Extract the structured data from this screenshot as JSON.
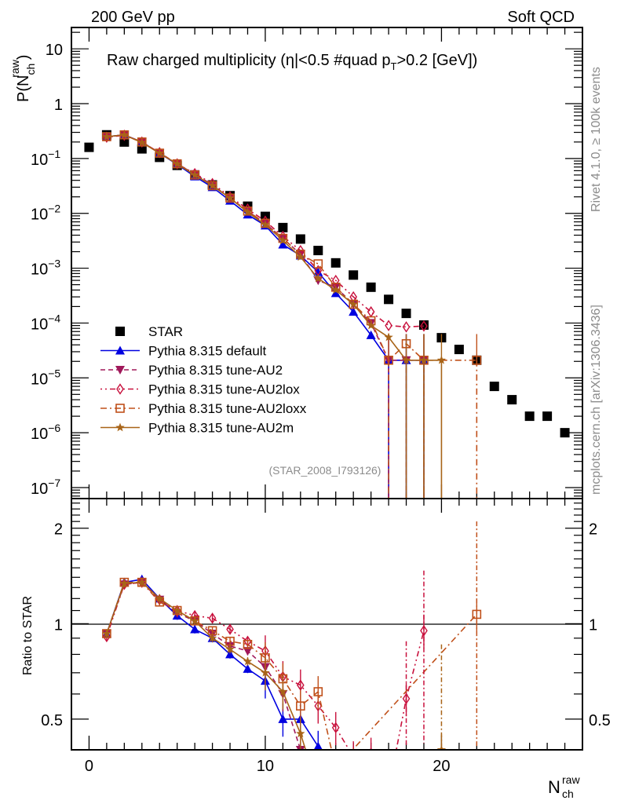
{
  "header": {
    "left": "200 GeV pp",
    "right": "Soft QCD"
  },
  "side_labels": {
    "rivet": "Rivet 4.1.0, ≥ 100k events",
    "mcplots": "mcplots.cern.ch [arXiv:1306.3436]"
  },
  "chart_data": [
    {
      "type": "line",
      "panel": "main",
      "title": "Raw charged multiplicity (|η|<0.5 #quad p_T>0.2 [GeV])",
      "title_parts": {
        "pre": "Raw charged multiplicity (",
        "eta": "η",
        "mid": "|<0.5 #quad p",
        "sub": "T",
        "post": ">0.2 [GeV])"
      },
      "ylabel": "P(N_ch^raw)",
      "ylabel_parts": {
        "p": "P(N",
        "sub": "ch",
        "sup": "raw",
        "close": ")"
      },
      "xlabel": "N_ch^raw",
      "xlabel_parts": {
        "n": "N",
        "sub": "ch",
        "sup": "raw"
      },
      "yscale": "log",
      "xlim": [
        -1,
        28
      ],
      "ylim": [
        6.3e-08,
        24.5
      ],
      "x_ticks": [
        0,
        10,
        20
      ],
      "y_tick_labels": [
        {
          "v": 10,
          "t": "10"
        },
        {
          "v": 1,
          "t": "1"
        },
        {
          "v": 0.1,
          "t": "10",
          "e": "−1"
        },
        {
          "v": 0.01,
          "t": "10",
          "e": "−2"
        },
        {
          "v": 0.001,
          "t": "10",
          "e": "−3"
        },
        {
          "v": 0.0001,
          "t": "10",
          "e": "−4"
        },
        {
          "v": 1e-05,
          "t": "10",
          "e": "−5"
        },
        {
          "v": 1e-06,
          "t": "10",
          "e": "−6"
        },
        {
          "v": 1e-07,
          "t": "10",
          "e": "−7"
        }
      ],
      "annotation": "(STAR_2008_I793126)",
      "legend_position": "bottom-left",
      "series": [
        {
          "name": "STAR",
          "color": "#000000",
          "marker": "square",
          "line": "none",
          "x": [
            0,
            1,
            2,
            3,
            4,
            5,
            6,
            7,
            8,
            9,
            10,
            11,
            12,
            13,
            14,
            15,
            16,
            17,
            18,
            19,
            20,
            21,
            22,
            23,
            24,
            25,
            26,
            27
          ],
          "y": [
            0.16,
            0.27,
            0.2,
            0.15,
            0.105,
            0.075,
            0.05,
            0.033,
            0.021,
            0.0135,
            0.0088,
            0.0055,
            0.0034,
            0.0021,
            0.00125,
            0.00075,
            0.00045,
            0.00027,
            0.00015,
            9.2e-05,
            5.4e-05,
            3.3e-05,
            2.1e-05,
            7e-06,
            4e-06,
            2e-06,
            2e-06,
            1e-06
          ]
        },
        {
          "name": "Pythia 8.315 default",
          "color": "#0000e0",
          "marker": "triangle-up",
          "line": "solid",
          "x": [
            1,
            2,
            3,
            4,
            5,
            6,
            7,
            8,
            9,
            10,
            11,
            12,
            13,
            14,
            15,
            16,
            17,
            18,
            19
          ],
          "y": [
            0.25,
            0.27,
            0.2,
            0.125,
            0.078,
            0.047,
            0.03,
            0.017,
            0.0095,
            0.006,
            0.0027,
            0.0017,
            0.00085,
            0.00035,
            0.00016,
            6e-05,
            2.1e-05,
            2.1e-05,
            2.1e-05
          ]
        },
        {
          "name": "Pythia 8.315 tune-AU2",
          "color": "#a0185a",
          "marker": "triangle-down",
          "line": "dashed",
          "x": [
            1,
            2,
            3,
            4,
            5,
            6,
            7,
            8,
            9,
            10,
            11,
            12,
            13,
            14,
            15,
            16,
            17,
            18,
            19
          ],
          "y": [
            0.25,
            0.27,
            0.2,
            0.125,
            0.08,
            0.052,
            0.033,
            0.019,
            0.011,
            0.0065,
            0.0035,
            0.0018,
            0.0006,
            0.00045,
            0.00022,
            0.0001,
            2.1e-05,
            2.1e-05,
            2.1e-05
          ]
        },
        {
          "name": "Pythia 8.315 tune-AU2lox",
          "color": "#c8103c",
          "marker": "diamond-open",
          "line": "dash-dot-dot",
          "x": [
            1,
            2,
            3,
            4,
            5,
            6,
            7,
            8,
            9,
            10,
            11,
            12,
            13,
            14,
            15,
            16,
            17,
            18,
            19
          ],
          "y": [
            0.245,
            0.265,
            0.2,
            0.128,
            0.08,
            0.053,
            0.035,
            0.02,
            0.012,
            0.0072,
            0.0038,
            0.0021,
            0.0009,
            0.0006,
            0.0003,
            0.00016,
            9e-05,
            8.5e-05,
            8.8e-05
          ]
        },
        {
          "name": "Pythia 8.315 tune-AU2loxx",
          "color": "#c0501a",
          "marker": "square-open",
          "line": "dash-dot",
          "x": [
            1,
            2,
            3,
            4,
            5,
            6,
            7,
            8,
            9,
            10,
            11,
            12,
            13,
            14,
            15,
            16,
            17,
            18,
            19,
            22
          ],
          "y": [
            0.25,
            0.27,
            0.2,
            0.125,
            0.08,
            0.05,
            0.032,
            0.019,
            0.011,
            0.0066,
            0.0035,
            0.0018,
            0.0012,
            0.00045,
            0.00022,
            0.00011,
            2.1e-05,
            4.2e-05,
            2.1e-05,
            2.1e-05
          ]
        },
        {
          "name": "Pythia 8.315 tune-AU2m",
          "color": "#a86418",
          "marker": "star",
          "line": "solid",
          "x": [
            1,
            2,
            3,
            4,
            5,
            6,
            7,
            8,
            9,
            10,
            11,
            12,
            13,
            14,
            15,
            16,
            17,
            18,
            19,
            20
          ],
          "y": [
            0.25,
            0.27,
            0.195,
            0.125,
            0.08,
            0.05,
            0.032,
            0.019,
            0.0105,
            0.0062,
            0.0032,
            0.0016,
            0.00065,
            0.0004,
            0.00022,
            9e-05,
            5.5e-05,
            2.1e-05,
            2.1e-05,
            2.1e-05
          ]
        }
      ]
    },
    {
      "type": "line",
      "panel": "ratio",
      "ylabel": "Ratio to STAR",
      "yscale": "log",
      "ylim": [
        0.4,
        2.48
      ],
      "xlim": [
        -1,
        28
      ],
      "x_ticks": [
        0,
        10,
        20
      ],
      "x_tick_labels": [
        "0",
        "10",
        "20"
      ],
      "y_ticks": [
        0.5,
        1,
        2
      ],
      "y_tick_labels": [
        "0.5",
        "1",
        "2"
      ],
      "reference_line": 1,
      "series": [
        {
          "name": "Pythia 8.315 default",
          "x": [
            1,
            2,
            3,
            4,
            5,
            6,
            7,
            8,
            9,
            10,
            11,
            12,
            13,
            14
          ],
          "y": [
            0.93,
            1.35,
            1.38,
            1.2,
            1.06,
            0.96,
            0.9,
            0.8,
            0.72,
            0.66,
            0.5,
            0.5,
            0.41,
            0.3
          ]
        },
        {
          "name": "Pythia 8.315 tune-AU2",
          "x": [
            1,
            2,
            3,
            4,
            5,
            6,
            7,
            8,
            9,
            10,
            11,
            12,
            13
          ],
          "y": [
            0.93,
            1.33,
            1.35,
            1.19,
            1.08,
            1.02,
            0.93,
            0.85,
            0.82,
            0.73,
            0.6,
            0.4,
            0.3
          ]
        },
        {
          "name": "Pythia 8.315 tune-AU2lox",
          "x": [
            1,
            2,
            3,
            4,
            5,
            6,
            7,
            8,
            9,
            10,
            11,
            12,
            13,
            14,
            15,
            16,
            17,
            18,
            19
          ],
          "y": [
            0.91,
            1.33,
            1.35,
            1.19,
            1.1,
            1.06,
            1.04,
            0.96,
            0.88,
            0.82,
            0.68,
            0.64,
            0.55,
            0.47,
            0.38,
            0.39,
            0.3,
            0.58,
            0.95
          ]
        },
        {
          "name": "Pythia 8.315 tune-AU2loxx",
          "x": [
            1,
            2,
            3,
            4,
            5,
            6,
            7,
            8,
            9,
            10,
            11,
            12,
            13,
            14,
            22
          ],
          "y": [
            0.93,
            1.35,
            1.35,
            1.17,
            1.1,
            1.02,
            0.95,
            0.88,
            0.86,
            0.78,
            0.67,
            0.55,
            0.61,
            0.35,
            1.07
          ]
        },
        {
          "name": "Pythia 8.315 tune-AU2m",
          "x": [
            1,
            2,
            3,
            4,
            5,
            6,
            7,
            8,
            9,
            10,
            11,
            12,
            13,
            20
          ],
          "y": [
            0.93,
            1.34,
            1.35,
            1.2,
            1.1,
            1.02,
            0.9,
            0.83,
            0.76,
            0.7,
            0.61,
            0.45,
            0.3,
            0.4
          ]
        }
      ]
    }
  ]
}
